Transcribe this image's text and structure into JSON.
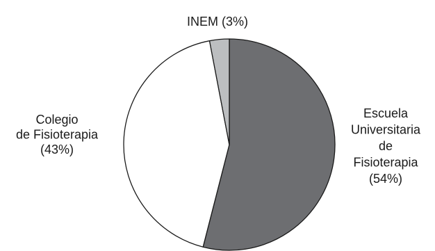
{
  "chart_data": {
    "type": "pie",
    "title": "",
    "slices": [
      {
        "label": "Escuela Universitaria de Fisioterapia",
        "value": 54,
        "label_lines": [
          "Escuela",
          "Universitaria",
          "de",
          "Fisioterapia",
          "(54%)"
        ],
        "color": "#6d6e71"
      },
      {
        "label": "Colegio de Fisioterapia",
        "value": 43,
        "label_lines": [
          "Colegio",
          "de Fisioterapia",
          "(43%)"
        ],
        "color": "#ffffff"
      },
      {
        "label": "INEM",
        "value": 3,
        "label_lines": [
          "INEM (3%)"
        ],
        "color": "#bcbec0"
      }
    ]
  }
}
